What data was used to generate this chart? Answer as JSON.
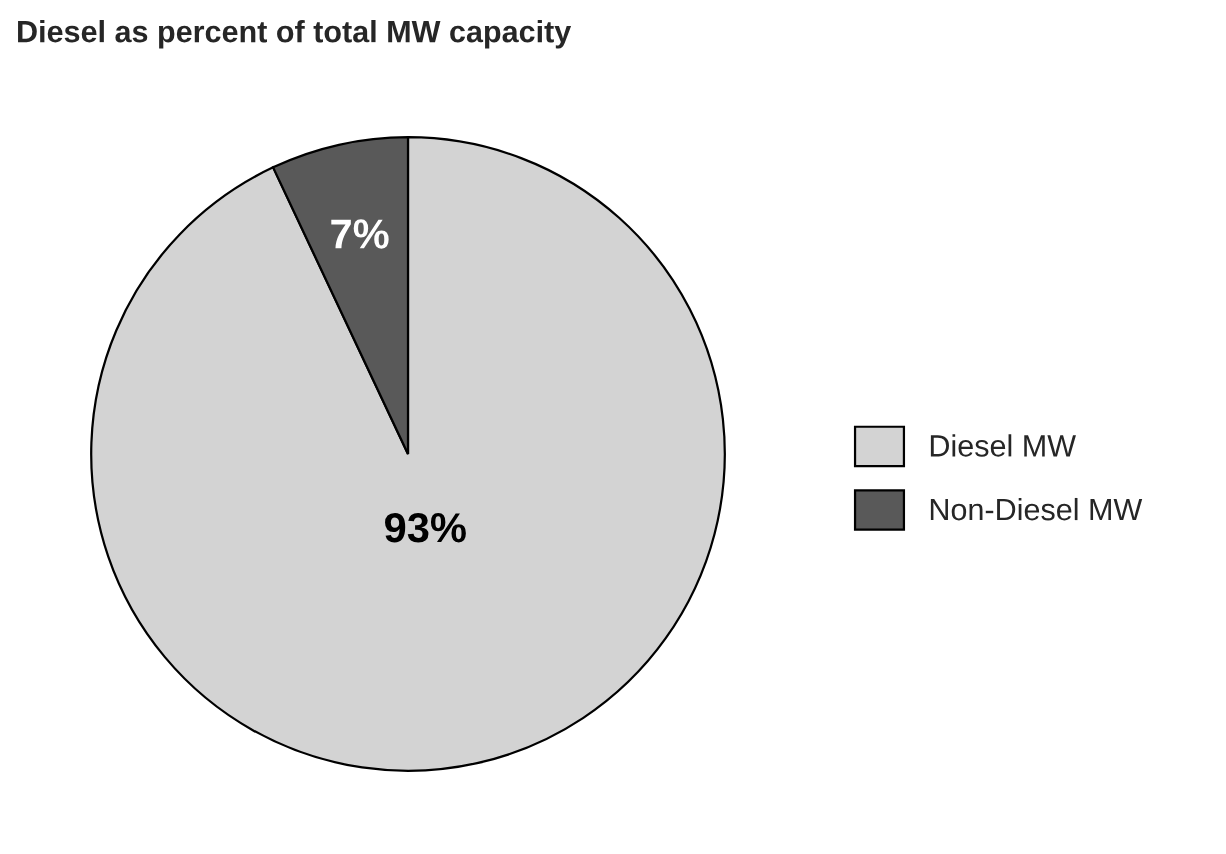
{
  "chart_data": {
    "type": "pie",
    "title": "Diesel as percent of total MW capacity",
    "categories": [
      "Diesel MW",
      "Non-Diesel MW"
    ],
    "values": [
      93,
      7
    ],
    "colors": [
      "#d3d3d3",
      "#595959"
    ],
    "value_labels": [
      "93%",
      "7%"
    ],
    "legend": "right"
  }
}
